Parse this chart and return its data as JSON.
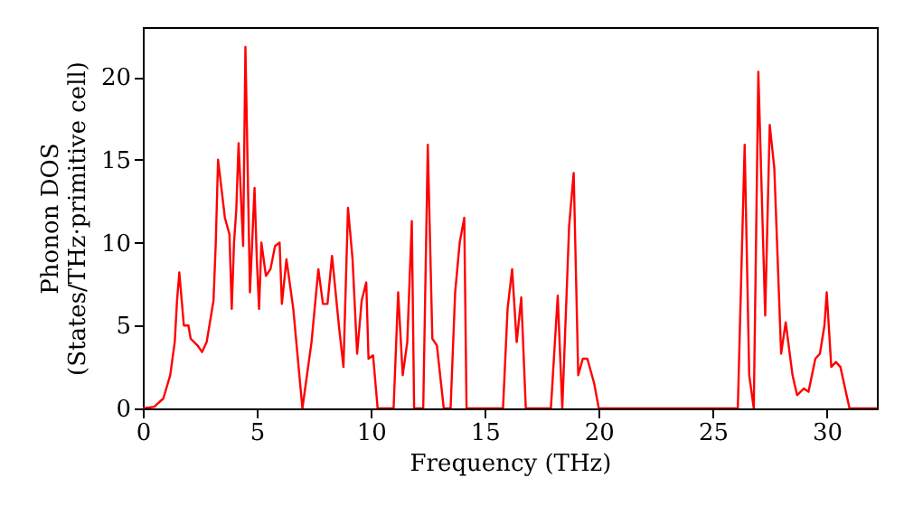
{
  "chart_data": {
    "type": "line",
    "xlabel": "Frequency (THz)",
    "ylabel": "Phonon DOS\n(States/THz·primitive cell)",
    "xlim": [
      0,
      32.2
    ],
    "ylim": [
      0,
      23
    ],
    "xticks": [
      0,
      5,
      10,
      15,
      20,
      25,
      30
    ],
    "yticks": [
      0,
      5,
      10,
      15,
      20
    ],
    "grid": false,
    "marker": "none",
    "line_style": "solid",
    "x": [
      0,
      0.5,
      0.9,
      1.2,
      1.4,
      1.5,
      1.6,
      1.8,
      2.0,
      2.1,
      2.4,
      2.6,
      2.8,
      3.1,
      3.2,
      3.3,
      3.6,
      3.8,
      3.9,
      4.0,
      4.1,
      4.2,
      4.4,
      4.5,
      4.7,
      4.9,
      5.0,
      5.1,
      5.2,
      5.4,
      5.6,
      5.8,
      6.0,
      6.1,
      6.3,
      6.6,
      7.0,
      7.4,
      7.7,
      7.9,
      8.1,
      8.3,
      8.6,
      8.8,
      9.0,
      9.2,
      9.4,
      9.6,
      9.8,
      9.9,
      10.1,
      10.3,
      11.0,
      11.2,
      11.4,
      11.6,
      11.8,
      11.9,
      12.3,
      12.5,
      12.7,
      12.9,
      13.2,
      13.5,
      13.7,
      13.9,
      14.1,
      14.2,
      15.8,
      16.0,
      16.2,
      16.4,
      16.6,
      16.8,
      17.9,
      18.2,
      18.4,
      18.7,
      18.9,
      19.1,
      19.3,
      19.5,
      19.8,
      20.0,
      26.1,
      26.4,
      26.6,
      26.8,
      27.0,
      27.3,
      27.5,
      27.7,
      28.0,
      28.2,
      28.5,
      28.7,
      29.0,
      29.2,
      29.5,
      29.7,
      29.9,
      30.0,
      30.2,
      30.4,
      30.6,
      31.0,
      32.2
    ],
    "series": [
      {
        "color": "#ff0000",
        "values": [
          0,
          0.1,
          0.6,
          2,
          4,
          6.5,
          8.2,
          5,
          5,
          4.2,
          3.8,
          3.4,
          4,
          6.5,
          10,
          15,
          11.5,
          10.5,
          6,
          10,
          12,
          16,
          9.8,
          21.8,
          7,
          13.3,
          9,
          6,
          10,
          8,
          8.4,
          9.8,
          10,
          6.3,
          9,
          6,
          0,
          4,
          8.4,
          6.3,
          6.3,
          9.2,
          5,
          2.5,
          12.1,
          9,
          3.3,
          6.5,
          7.6,
          3,
          3.2,
          0,
          0,
          7,
          2,
          4,
          11.3,
          0,
          0,
          15.9,
          4.2,
          3.8,
          0,
          0,
          7,
          10,
          11.5,
          0,
          0,
          6,
          8.4,
          4,
          6.7,
          0,
          0,
          6.8,
          0,
          11,
          14.2,
          2,
          3,
          3,
          1.5,
          0,
          0,
          15.9,
          2,
          0,
          20.3,
          5.6,
          17.1,
          14.5,
          3.3,
          5.2,
          2,
          0.8,
          1.2,
          1.0,
          3,
          3.3,
          5,
          7,
          2.5,
          2.8,
          2.5,
          0,
          0
        ]
      }
    ]
  }
}
